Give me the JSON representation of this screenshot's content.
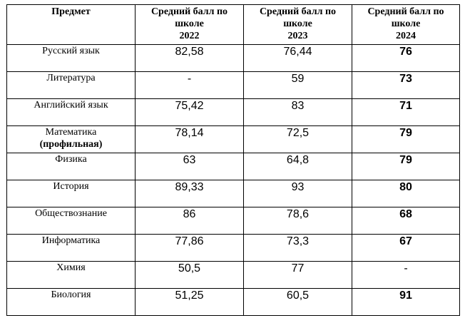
{
  "table": {
    "headers": {
      "subject": "Предмет",
      "y2022": [
        "Средний балл по",
        "школе",
        "2022"
      ],
      "y2023": [
        "Средний балл по",
        "школе",
        "2023"
      ],
      "y2024": [
        "Средний балл по",
        "школе",
        "2024"
      ]
    },
    "rows": [
      {
        "subject": "Русский язык",
        "note": "",
        "v2022": "82,58",
        "v2023": "76,44",
        "v2024": "76"
      },
      {
        "subject": "Литература",
        "note": "",
        "v2022": "-",
        "v2023": "59",
        "v2024": "73"
      },
      {
        "subject": "Английский язык",
        "note": "",
        "v2022": "75,42",
        "v2023": "83",
        "v2024": "71"
      },
      {
        "subject": "Математика",
        "note": "(профильная)",
        "v2022": "78,14",
        "v2023": "72,5",
        "v2024": "79"
      },
      {
        "subject": "Физика",
        "note": "",
        "v2022": "63",
        "v2023": "64,8",
        "v2024": "79"
      },
      {
        "subject": "История",
        "note": "",
        "v2022": "89,33",
        "v2023": "93",
        "v2024": "80"
      },
      {
        "subject": "Обществознание",
        "note": "",
        "v2022": "86",
        "v2023": "78,6",
        "v2024": "68"
      },
      {
        "subject": "Информатика",
        "note": "",
        "v2022": "77,86",
        "v2023": "73,3",
        "v2024": "67"
      },
      {
        "subject": "Химия",
        "note": "",
        "v2022": "50,5",
        "v2023": "77",
        "v2024": "-"
      },
      {
        "subject": "Биология",
        "note": "",
        "v2022": "51,25",
        "v2023": "60,5",
        "v2024": "91"
      }
    ]
  }
}
